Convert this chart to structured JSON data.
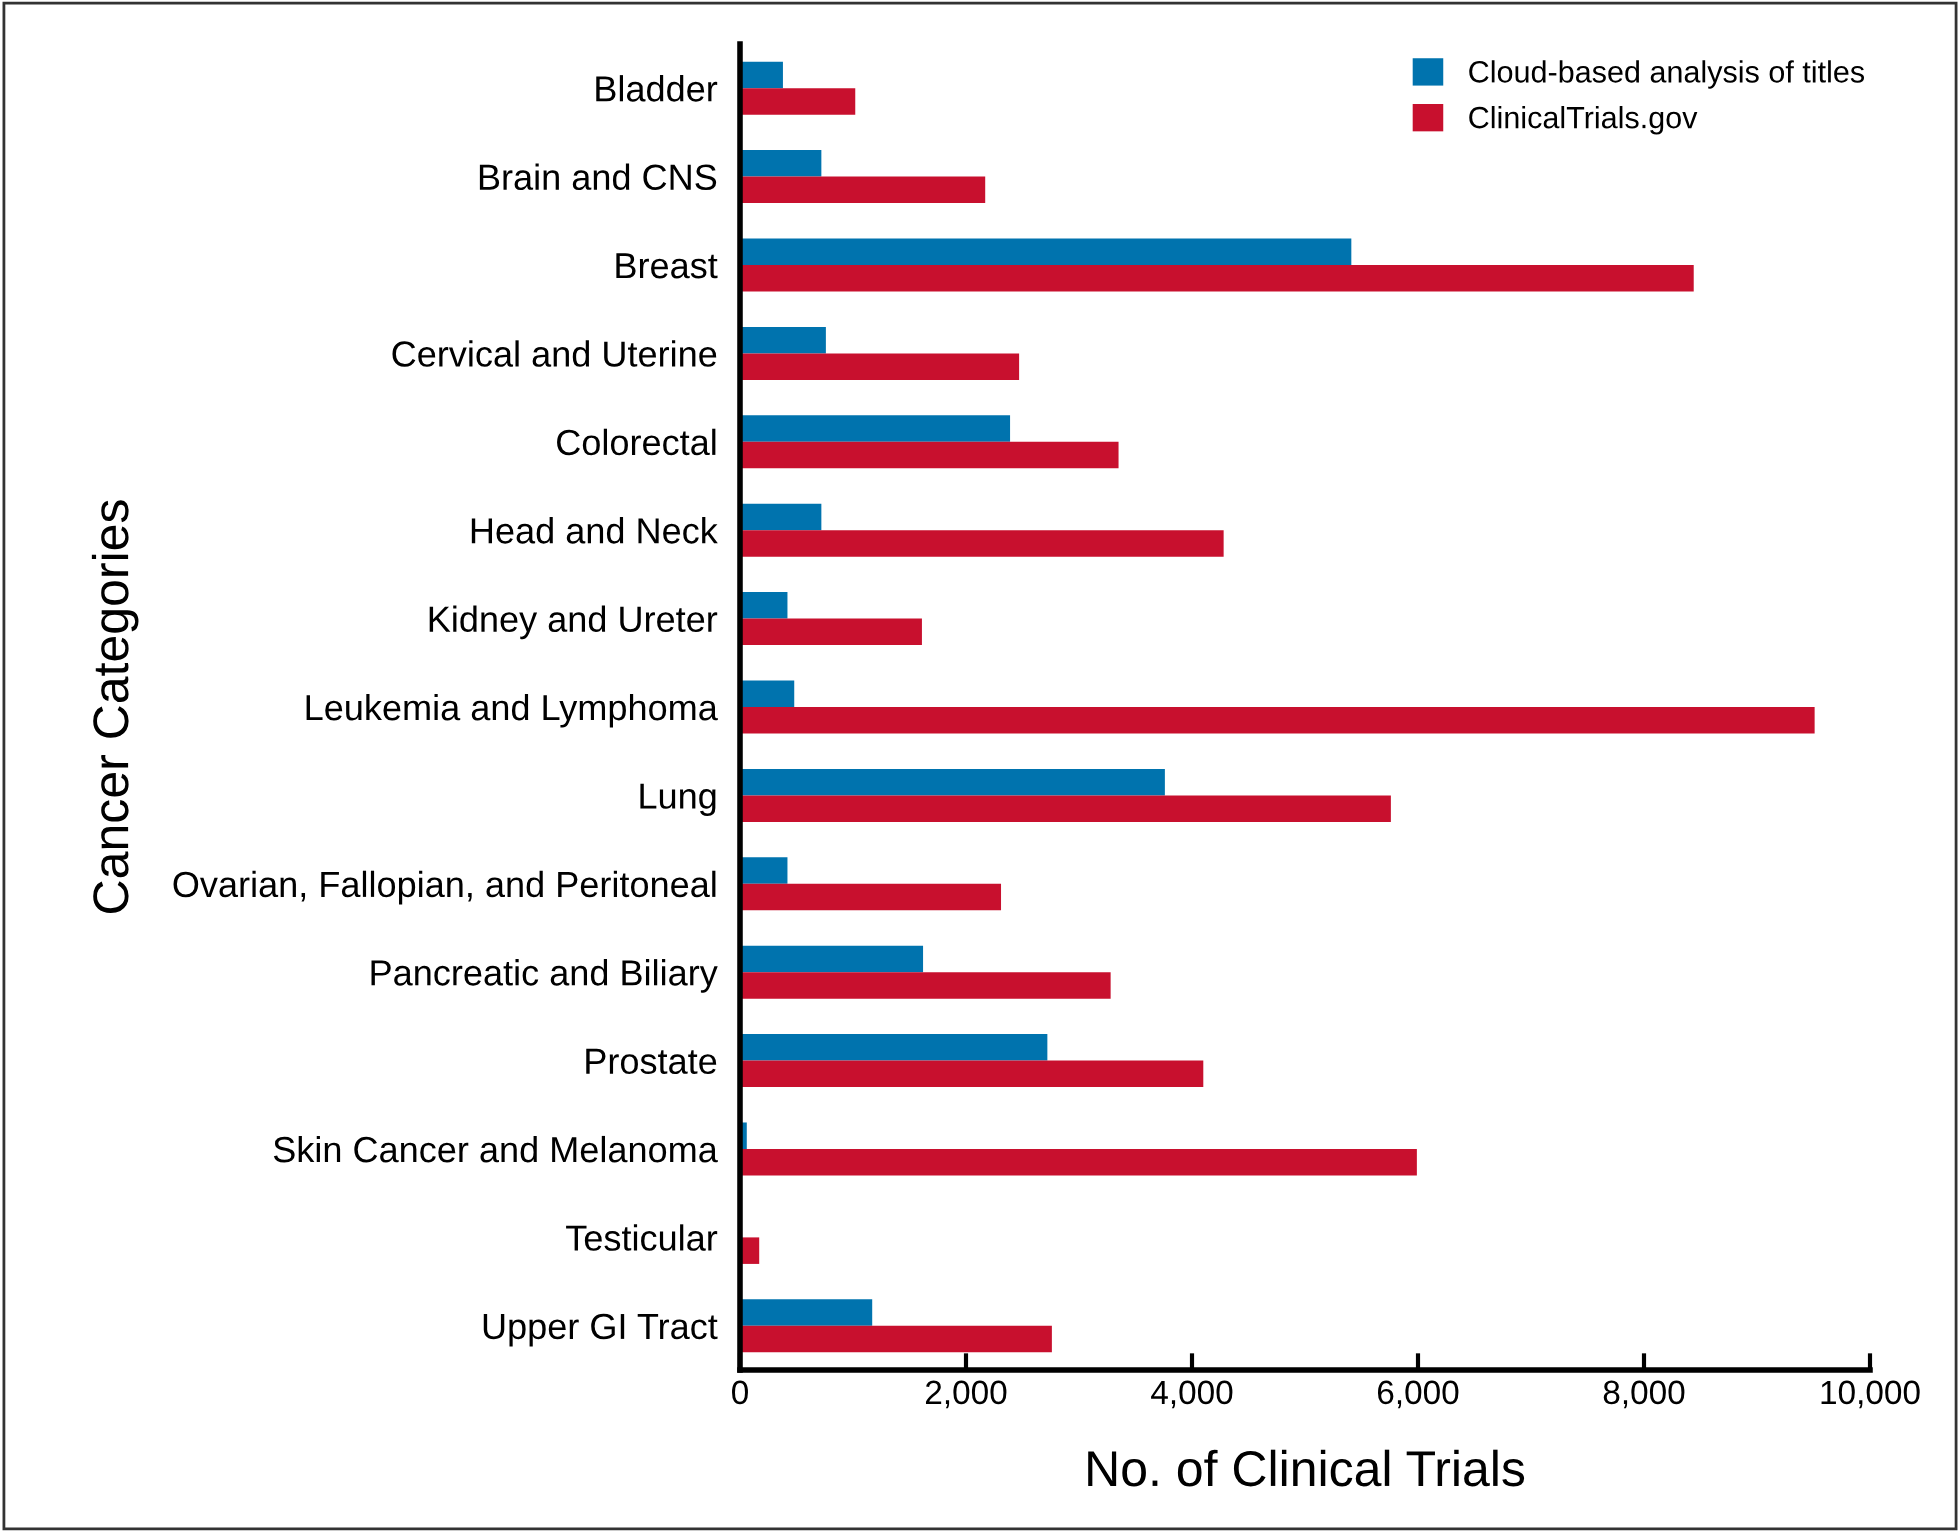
{
  "chart_data": {
    "type": "bar",
    "orientation": "horizontal",
    "ylabel": "Cancer Categories",
    "xlabel": "No. of Clinical Trials",
    "categories": [
      "Bladder",
      "Brain and CNS",
      "Breast",
      "Cervical and Uterine",
      "Colorectal",
      "Head and Neck",
      "Kidney and Ureter",
      "Leukemia and Lymphoma",
      "Lung",
      "Ovarian, Fallopian, and Peritoneal",
      "Pancreatic and Biliary",
      "Prostate",
      "Skin Cancer and Melanoma",
      "Testicular",
      "Upper GI Tract"
    ],
    "series": [
      {
        "name": "Cloud-based analysis of titles",
        "color": "#0073ae",
        "values": [
          380,
          720,
          5410,
          760,
          2390,
          720,
          420,
          480,
          3760,
          420,
          1620,
          2720,
          60,
          null,
          1170
        ]
      },
      {
        "name": "ClinicalTrials.gov",
        "color": "#c8102e",
        "values": [
          1020,
          2170,
          8440,
          2470,
          3350,
          4280,
          1610,
          9510,
          5760,
          2310,
          3280,
          4100,
          5990,
          170,
          2760
        ]
      }
    ],
    "xlim": [
      0,
      10000
    ],
    "xticks": [
      {
        "value": 0,
        "label": "0"
      },
      {
        "value": 2000,
        "label": "2,000"
      },
      {
        "value": 4000,
        "label": "4,000"
      },
      {
        "value": 6000,
        "label": "6,000"
      },
      {
        "value": 8000,
        "label": "8,000"
      },
      {
        "value": 10000,
        "label": "10,000"
      }
    ],
    "grid": false,
    "legend": "top right"
  }
}
